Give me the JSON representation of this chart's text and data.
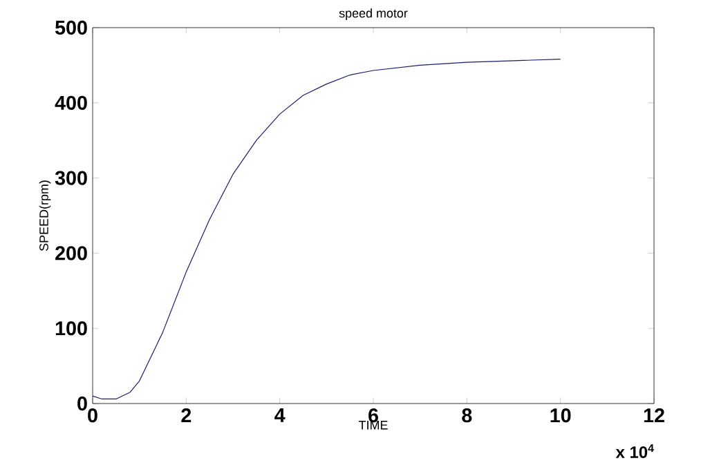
{
  "chart_data": {
    "type": "line",
    "title": "speed motor",
    "xlabel": "TIME",
    "ylabel": "SPEED(rpm)",
    "annotations": [
      "x 10$^{4}$"
    ],
    "x": [
      0,
      0.2,
      0.5,
      0.8,
      1,
      1.5,
      2,
      2.5,
      3,
      3.5,
      4,
      4.5,
      5,
      5.5,
      6,
      7,
      8,
      9,
      10
    ],
    "series": [
      {
        "color": "#1a1a6e",
        "values": [
          10,
          6,
          6,
          15,
          30,
          95,
          175,
          245,
          305,
          350,
          385,
          410,
          425,
          437,
          443,
          450,
          454,
          456,
          458
        ]
      }
    ],
    "xlim": [
      0,
      12
    ],
    "xticks": [
      0,
      2,
      4,
      6,
      8,
      10,
      12
    ],
    "ylim": [
      0,
      500
    ],
    "yticks": [
      0,
      100,
      200,
      300,
      400,
      500
    ],
    "marker": "none",
    "line_style": "solid"
  }
}
